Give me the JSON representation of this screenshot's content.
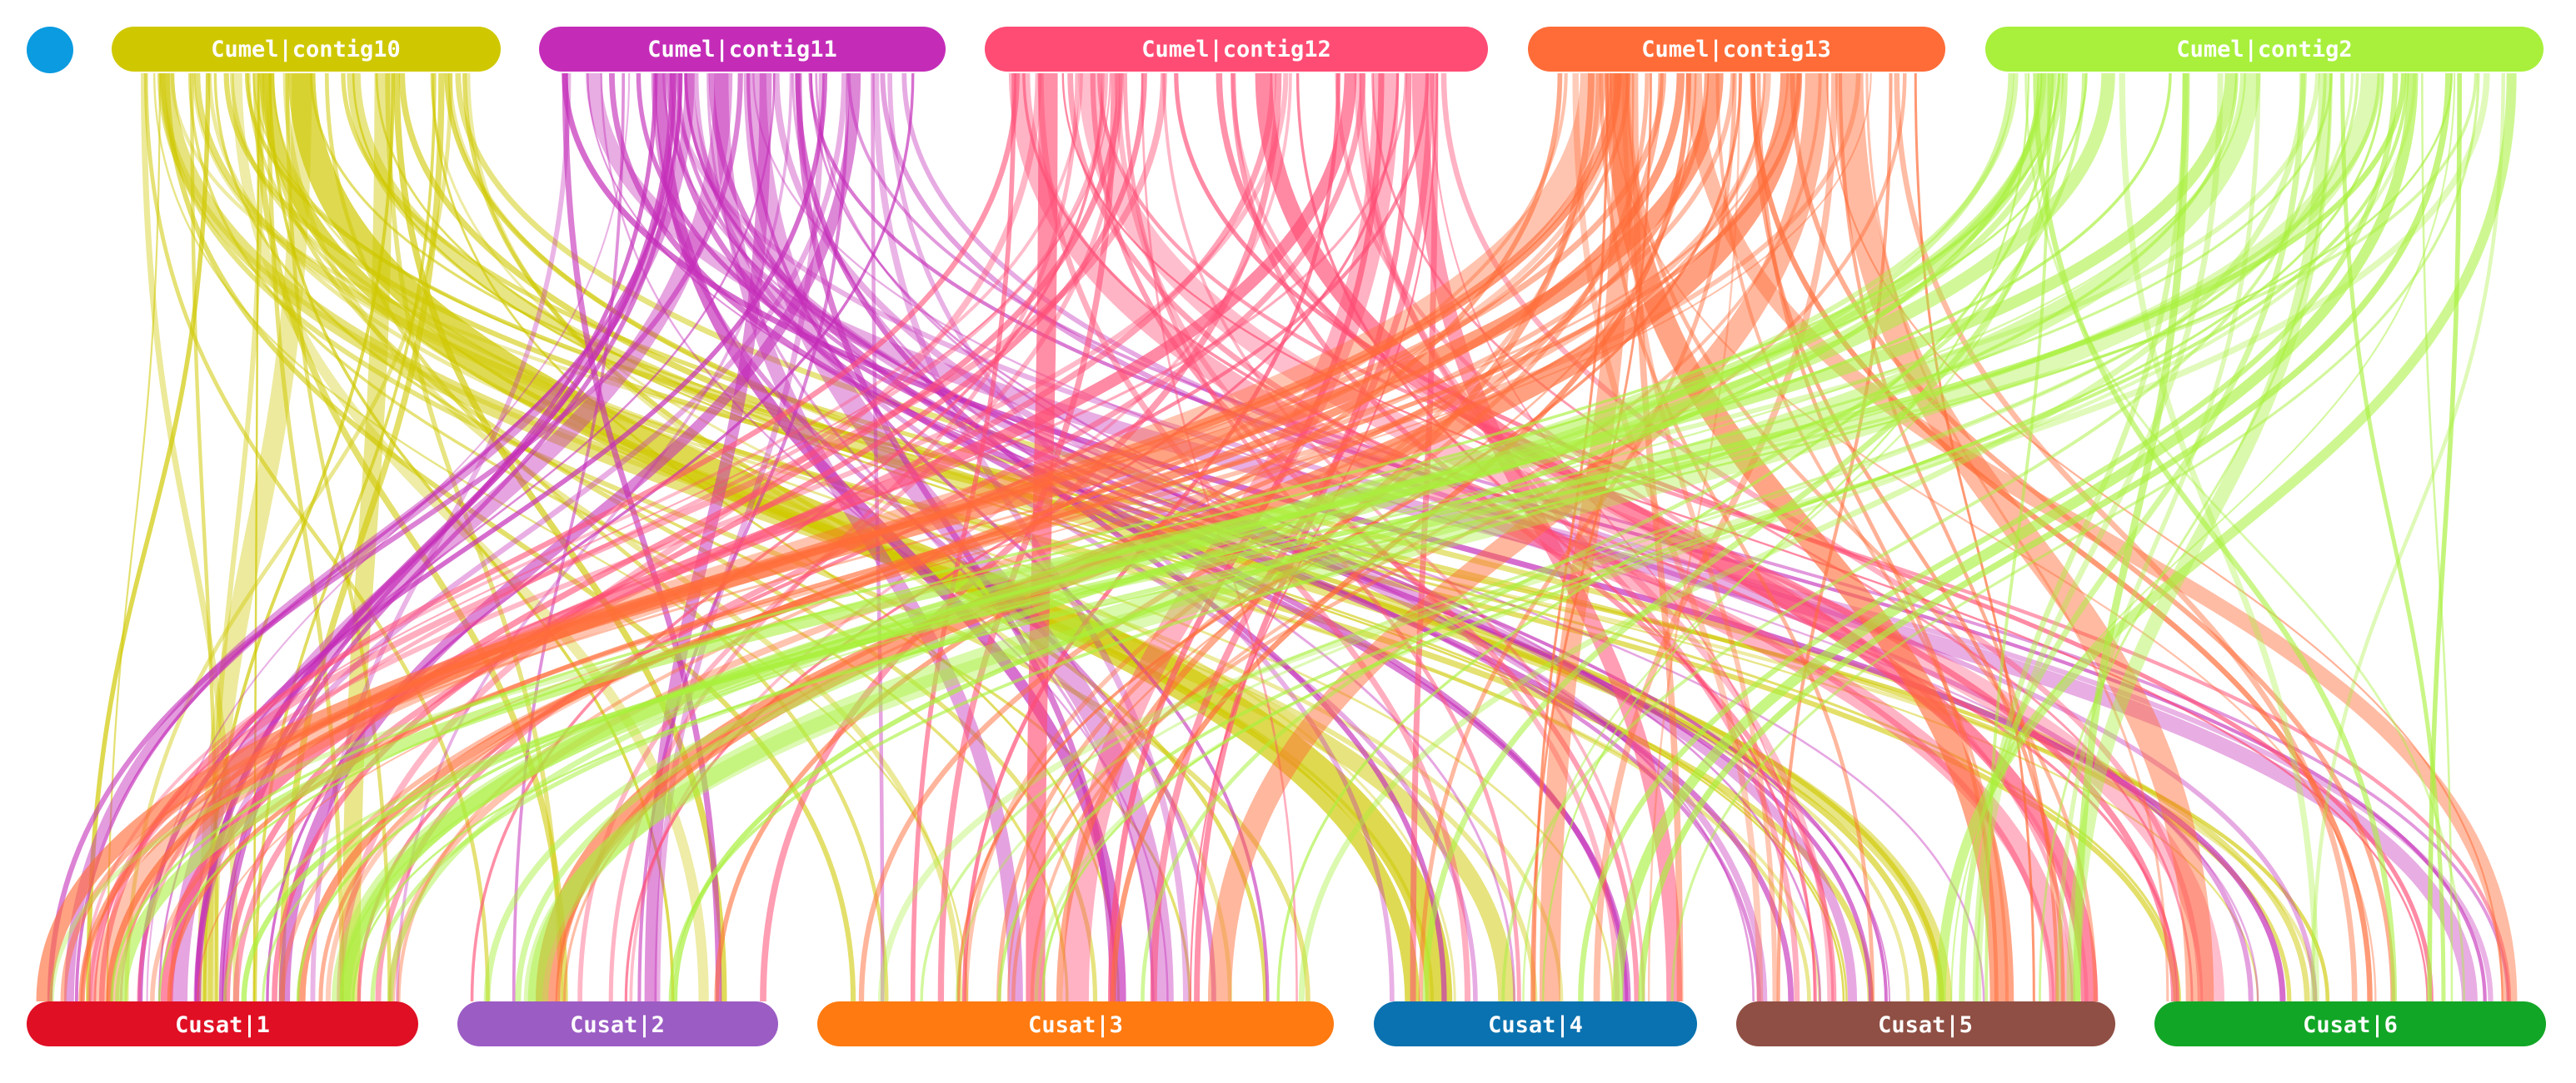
{
  "control": {
    "color": "#0a9be0",
    "icon": "circle-toggle-icon"
  },
  "top_tracks": [
    {
      "label": "Cumel|contig10",
      "color": "#cfc800"
    },
    {
      "label": "Cumel|contig11",
      "color": "#c42cb8"
    },
    {
      "label": "Cumel|contig12",
      "color": "#ff4c74"
    },
    {
      "label": "Cumel|contig13",
      "color": "#ff6c38"
    },
    {
      "label": "Cumel|contig2",
      "color": "#a8f03c"
    }
  ],
  "bottom_tracks": [
    {
      "label": "Cusat|1",
      "color": "#e00f24"
    },
    {
      "label": "Cusat|2",
      "color": "#9b5cc4"
    },
    {
      "label": "Cusat|3",
      "color": "#ff7a10"
    },
    {
      "label": "Cusat|4",
      "color": "#0a72b0"
    },
    {
      "label": "Cusat|5",
      "color": "#8f4f44"
    },
    {
      "label": "Cusat|6",
      "color": "#12a626"
    }
  ]
}
